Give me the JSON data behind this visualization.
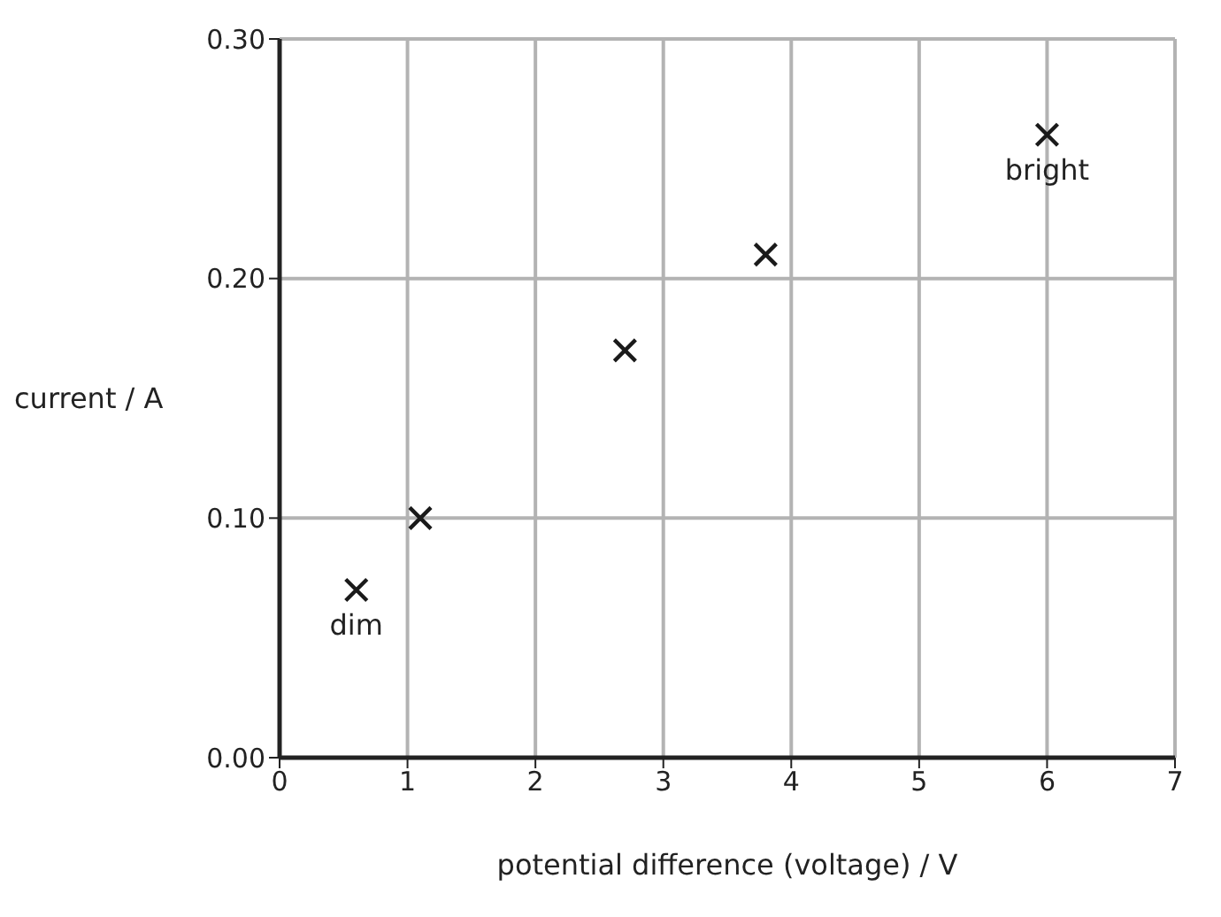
{
  "chart_data": {
    "type": "scatter",
    "xlabel": "potential difference (voltage) / V",
    "ylabel": "current / A",
    "x": [
      0.6,
      1.1,
      2.7,
      3.8,
      6.0
    ],
    "series": [
      {
        "color": "#1a1a1a",
        "values": [
          0.07,
          0.1,
          0.17,
          0.21,
          0.26
        ]
      }
    ],
    "xlim": [
      0,
      7
    ],
    "xticks": [
      0,
      1,
      2,
      3,
      4,
      5,
      6,
      7
    ],
    "ylim": [
      0,
      0.3
    ],
    "yticks": [
      {
        "value": 0,
        "label": "0.00"
      },
      {
        "value": 0.1,
        "label": "0.10"
      },
      {
        "value": 0.2,
        "label": "0.20"
      },
      {
        "value": 0.3,
        "label": "0.30"
      }
    ],
    "grid": true,
    "marker": "cross",
    "annotations": [
      {
        "text": "dim",
        "x": 0.6,
        "y": 0.07
      },
      {
        "text": "bright",
        "x": 6.0,
        "y": 0.26
      }
    ]
  }
}
